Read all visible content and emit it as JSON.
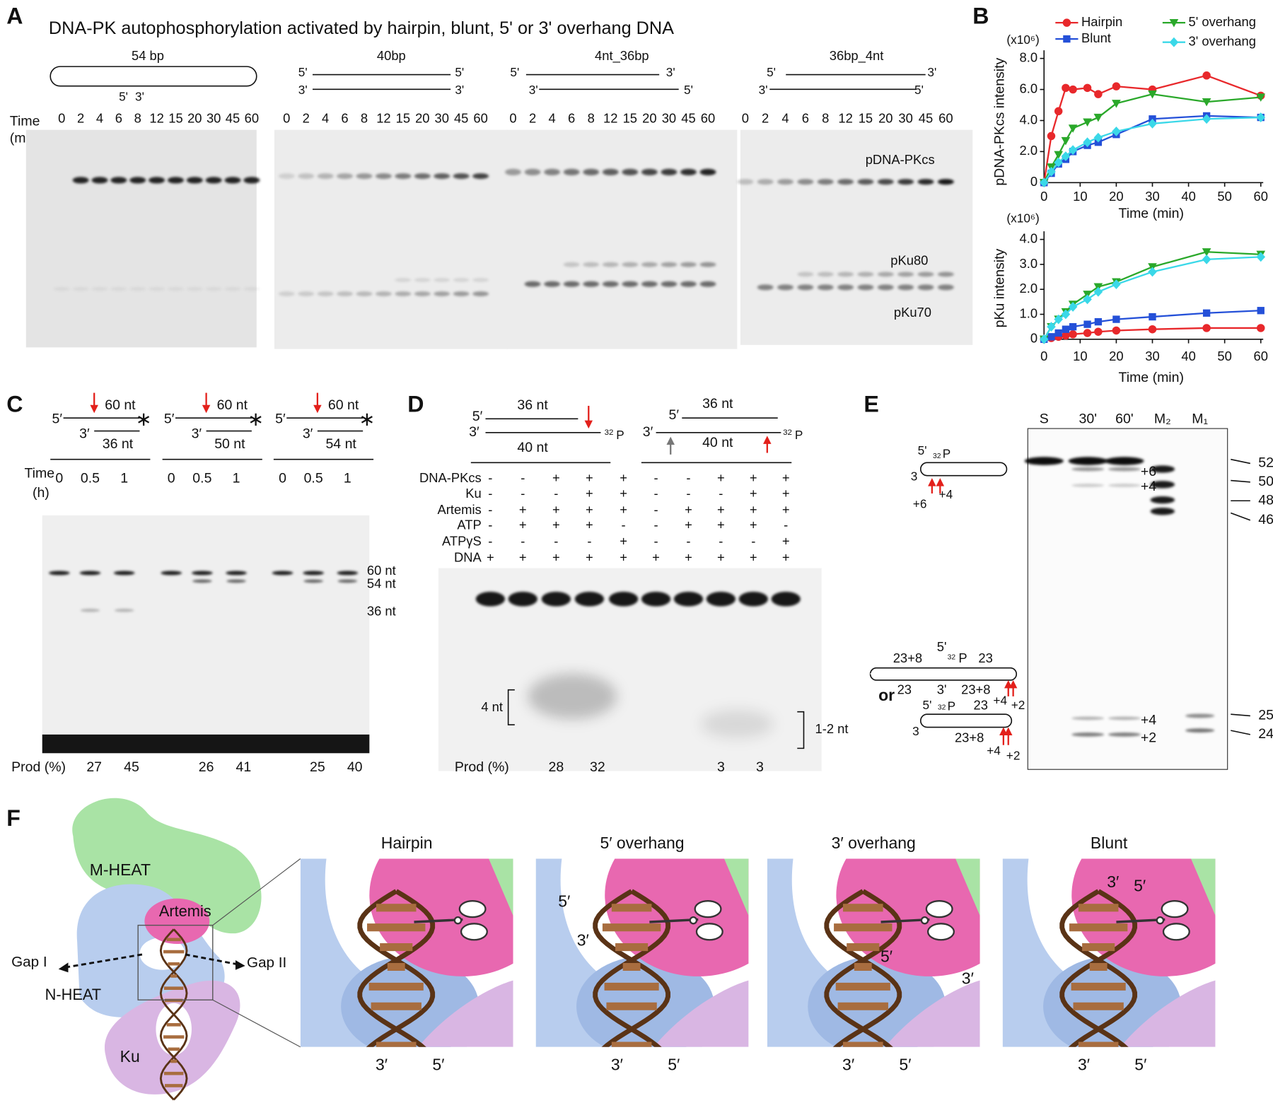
{
  "panel_a": {
    "letter": "A",
    "title": "DNA-PK autophosphorylation activated by hairpin, blunt, 5' or 3' overhang DNA",
    "time_label": [
      "Time",
      "(min)"
    ],
    "gels": [
      {
        "name": "54 bp",
        "ends": [
          "5'",
          "3'"
        ],
        "times": [
          0,
          2,
          4,
          6,
          8,
          12,
          15,
          20,
          30,
          45,
          60
        ]
      },
      {
        "name": "40bp",
        "ends": [
          "5'",
          "5'",
          "3'",
          "3'"
        ],
        "times": [
          0,
          2,
          4,
          6,
          8,
          12,
          15,
          20,
          30,
          45,
          60
        ]
      },
      {
        "name": "4nt_36bp",
        "ends": [
          "5'",
          "3'",
          "3'",
          "5'"
        ],
        "times": [
          0,
          2,
          4,
          6,
          8,
          12,
          15,
          20,
          30,
          45,
          60
        ]
      },
      {
        "name": "36bp_4nt",
        "ends": [
          "5'",
          "3'",
          "3'",
          "5'"
        ],
        "times": [
          0,
          2,
          4,
          6,
          8,
          12,
          15,
          20,
          30,
          45,
          60
        ]
      }
    ],
    "bands": [
      "pDNA-PKcs",
      "pKu80",
      "pKu70"
    ]
  },
  "panel_b": {
    "letter": "B",
    "charts": [
      {
        "type": "line",
        "y_label": "pDNA-PKcs intensity",
        "multiplier": "(x10⁶)",
        "x_label": "Time (min)",
        "legend": true,
        "x": [
          0,
          2,
          4,
          6,
          8,
          12,
          15,
          20,
          30,
          45,
          60
        ],
        "xlim": [
          0,
          60
        ],
        "xticks": [
          0,
          10,
          20,
          30,
          40,
          50,
          60
        ],
        "ylim": [
          0,
          8
        ],
        "yticks": [
          0,
          {
            "value": 2,
            "label": "2.0"
          },
          {
            "value": 4,
            "label": "4.0"
          },
          {
            "value": 6,
            "label": "6.0"
          },
          {
            "value": 8,
            "label": "8.0"
          }
        ],
        "series": [
          {
            "name": "Hairpin",
            "color": "#e8282b",
            "marker": "circle",
            "values": [
              0,
              3.0,
              4.6,
              6.1,
              6.0,
              6.1,
              5.7,
              6.2,
              6.0,
              6.9,
              5.6
            ]
          },
          {
            "name": "Blunt",
            "color": "#2450d8",
            "marker": "square",
            "values": [
              0,
              0.6,
              1.2,
              1.5,
              2.0,
              2.4,
              2.6,
              3.1,
              4.1,
              4.3,
              4.2
            ]
          },
          {
            "name": "5' overhang",
            "color": "#2aa82a",
            "marker": "triangle",
            "values": [
              0,
              1.0,
              1.8,
              2.7,
              3.5,
              3.9,
              4.2,
              5.1,
              5.7,
              5.2,
              5.5
            ]
          },
          {
            "name": "3' overhang",
            "color": "#3ad8e8",
            "marker": "diamond",
            "values": [
              0,
              0.7,
              1.3,
              1.7,
              2.1,
              2.6,
              2.9,
              3.3,
              3.8,
              4.1,
              4.2
            ]
          }
        ]
      },
      {
        "type": "line",
        "y_label": "pKu intensity",
        "multiplier": "(x10⁶)",
        "x_label": "Time (min)",
        "legend": false,
        "x": [
          0,
          2,
          4,
          6,
          8,
          12,
          15,
          20,
          30,
          45,
          60
        ],
        "xlim": [
          0,
          60
        ],
        "xticks": [
          0,
          10,
          20,
          30,
          40,
          50,
          60
        ],
        "ylim": [
          0,
          4
        ],
        "yticks": [
          0,
          {
            "value": 1,
            "label": "1.0"
          },
          {
            "value": 2,
            "label": "2.0"
          },
          {
            "value": 3,
            "label": "3.0"
          },
          {
            "value": 4,
            "label": "4.0"
          }
        ],
        "series": [
          {
            "color": "#e8282b",
            "marker": "circle",
            "values": [
              0,
              0.05,
              0.1,
              0.15,
              0.2,
              0.25,
              0.3,
              0.35,
              0.4,
              0.45,
              0.45
            ]
          },
          {
            "color": "#2450d8",
            "marker": "square",
            "values": [
              0,
              0.1,
              0.25,
              0.4,
              0.5,
              0.6,
              0.7,
              0.8,
              0.9,
              1.05,
              1.15
            ]
          },
          {
            "color": "#2aa82a",
            "marker": "triangle",
            "values": [
              0,
              0.5,
              0.8,
              1.1,
              1.4,
              1.8,
              2.1,
              2.3,
              2.9,
              3.5,
              3.4
            ]
          },
          {
            "color": "#3ad8e8",
            "marker": "diamond",
            "values": [
              0,
              0.5,
              0.8,
              1.0,
              1.3,
              1.6,
              1.9,
              2.2,
              2.7,
              3.2,
              3.3
            ]
          }
        ]
      }
    ]
  },
  "panel_c": {
    "letter": "C",
    "time_label": [
      "Time",
      "(h)"
    ],
    "prod_label": "Prod (%)",
    "groups": [
      {
        "top": "5′",
        "top_len": "60 nt",
        "bottom": "3′",
        "bottom_len": "36 nt",
        "times": [
          0,
          0.5,
          1
        ],
        "prod": [
          27,
          45
        ]
      },
      {
        "top": "5′",
        "top_len": "60 nt",
        "bottom": "3′",
        "bottom_len": "50 nt",
        "times": [
          0,
          0.5,
          1
        ],
        "prod": [
          26,
          41
        ]
      },
      {
        "top": "5′",
        "top_len": "60 nt",
        "bottom": "3′",
        "bottom_len": "54 nt",
        "times": [
          0,
          0.5,
          1
        ],
        "prod": [
          25,
          40
        ]
      }
    ],
    "size_labels": [
      "60 nt",
      "54 nt",
      "36 nt"
    ]
  },
  "panel_d": {
    "letter": "D",
    "prod_label": "Prod (%)",
    "substrates": [
      {
        "top": "5′",
        "top_len": "36 nt",
        "bottom": "3′",
        "bottom_len": "40 nt",
        "label": [
          "32",
          "P"
        ]
      },
      {
        "top": "5′",
        "top_len": "36 nt",
        "bottom": "3′",
        "bottom_len": "40 nt",
        "label": [
          "32",
          "P"
        ]
      }
    ],
    "conditions": [
      {
        "name": "DNA-PKcs",
        "lanes": [
          "-",
          "-",
          "+",
          "+",
          "+",
          "-",
          "-",
          "+",
          "+",
          "+"
        ]
      },
      {
        "name": "Ku",
        "lanes": [
          "-",
          "-",
          "-",
          "+",
          "+",
          "-",
          "-",
          "-",
          "+",
          "+"
        ]
      },
      {
        "name": "Artemis",
        "lanes": [
          "-",
          "+",
          "+",
          "+",
          "+",
          "-",
          "+",
          "+",
          "+",
          "+"
        ]
      },
      {
        "name": "ATP",
        "lanes": [
          "-",
          "+",
          "+",
          "+",
          "-",
          "-",
          "+",
          "+",
          "+",
          "-"
        ]
      },
      {
        "name": "ATPγS",
        "lanes": [
          "-",
          "-",
          "-",
          "-",
          "+",
          "-",
          "-",
          "-",
          "-",
          "+"
        ]
      },
      {
        "name": "DNA",
        "lanes": [
          "+",
          "+",
          "+",
          "+",
          "+",
          "+",
          "+",
          "+",
          "+",
          "+"
        ]
      }
    ],
    "size_labels": [
      "4 nt",
      "1-2 nt"
    ],
    "prod": [
      28,
      32,
      3,
      3
    ]
  },
  "panel_e": {
    "letter": "E",
    "lanes": [
      "S",
      "30'",
      "60'",
      "M₂",
      "M₁"
    ],
    "markers": [
      52,
      50,
      48,
      46,
      25,
      24
    ],
    "band_labels": [
      "+6",
      "+4",
      "+4",
      "+2"
    ],
    "or": "or",
    "diagrams": [
      {
        "texts": [
          "5'",
          "32",
          "P",
          "3",
          "+6",
          "+4"
        ]
      },
      {
        "texts": [
          "23+8",
          "5'",
          "32",
          "P",
          "23",
          "23",
          "3'",
          "23+8",
          "+4",
          "+2"
        ]
      },
      {
        "texts": [
          "5'",
          "32",
          "P",
          "23",
          "3",
          "23+8",
          "+4",
          "+2"
        ]
      }
    ]
  },
  "panel_f": {
    "letter": "F",
    "model_labels": [
      "M-HEAT",
      "Artemis",
      "N-HEAT",
      "Ku",
      "Gap I",
      "Gap II"
    ],
    "views": [
      {
        "title": "Hairpin",
        "labels": [
          "3′",
          "5′"
        ]
      },
      {
        "title": "5′ overhang",
        "labels": [
          "3′",
          "5′",
          "5′",
          "3′"
        ]
      },
      {
        "title": "3′ overhang",
        "labels": [
          "3′",
          "5′",
          "5′",
          "3′"
        ]
      },
      {
        "title": "Blunt",
        "labels": [
          "3′",
          "5′",
          "3′",
          "5′"
        ]
      }
    ]
  }
}
